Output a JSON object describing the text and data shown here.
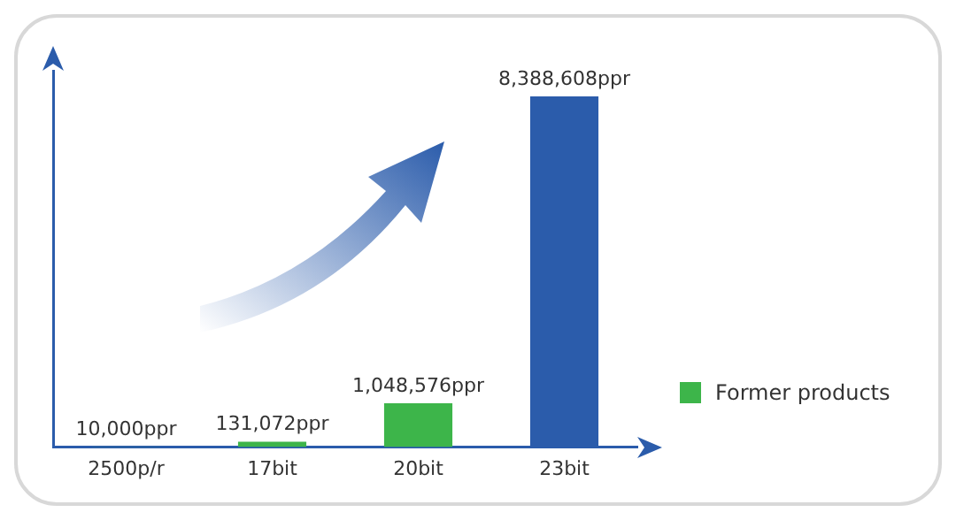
{
  "chart_data": {
    "type": "bar",
    "categories": [
      "2500p/r",
      "17bit",
      "20bit",
      "23bit"
    ],
    "series": [
      {
        "name": "Former products",
        "color": "#3db54a",
        "values": [
          10000,
          131072,
          1048576,
          null
        ],
        "value_labels": [
          "10,000ppr",
          "131,072ppr",
          "1,048,576ppr",
          null
        ]
      },
      {
        "color": "#2b5cab",
        "values": [
          null,
          null,
          null,
          8388608
        ],
        "value_labels": [
          null,
          null,
          null,
          "8,388,608ppr"
        ]
      }
    ],
    "legend": "right",
    "grid": false,
    "tick_labels": "x"
  }
}
